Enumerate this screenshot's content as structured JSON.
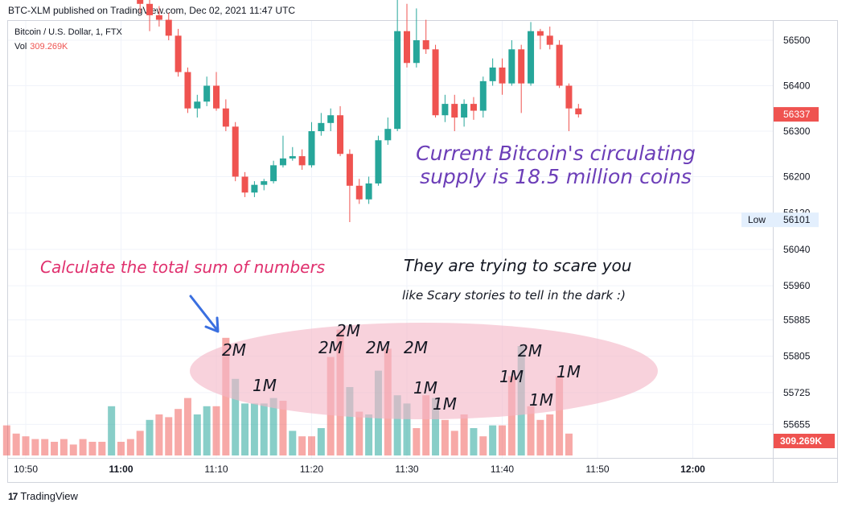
{
  "header": {
    "published": "BTC-XLM published on TradingView.com, Dec 02, 2021 11:47 UTC"
  },
  "legend": {
    "symbol": "Bitcoin / U.S. Dollar, 1, FTX",
    "volume_label": "Vol",
    "volume_value": "309.269K"
  },
  "annotations": {
    "supply_line1": "Current Bitcoin's circulating",
    "supply_line2": "supply is 18.5 million coins",
    "calculate": "Calculate the total sum of numbers",
    "scare": "They are trying to scare you",
    "stories": "like Scary stories to tell in the dark  :)"
  },
  "highlight_labels": [
    "2M",
    "1M",
    "2M",
    "2M",
    "2M",
    "2M",
    "1M",
    "1M",
    "1M",
    "2M",
    "1M",
    "1M"
  ],
  "branding": {
    "logo": "17",
    "name": "TradingView"
  },
  "colors": {
    "up": "#26a69a",
    "down": "#ef5350",
    "ellipse": "#f3b7c6",
    "arrow": "#3a6fe0",
    "supply_text": "#6c3eb8",
    "calc_text": "#e0306e"
  },
  "chart_data": {
    "type": "candlestick",
    "x_ticks": [
      "10:50",
      "11:00",
      "11:10",
      "11:20",
      "11:30",
      "11:40",
      "11:50",
      "12:00"
    ],
    "y_ticks": [
      56500,
      56400,
      56300,
      56200,
      56120,
      56040,
      55960,
      55885,
      55805,
      55725,
      55655
    ],
    "price_label": "56337",
    "low_label": "Low",
    "low_value": "56101",
    "volume_label": "309.269K",
    "candles": [
      {
        "t": "11:02",
        "o": 56600,
        "h": 56610,
        "l": 56560,
        "c": 56580
      },
      {
        "t": "11:03",
        "o": 56580,
        "h": 56600,
        "l": 56520,
        "c": 56555
      },
      {
        "t": "11:04",
        "o": 56555,
        "h": 56575,
        "l": 56530,
        "c": 56545
      },
      {
        "t": "11:05",
        "o": 56545,
        "h": 56560,
        "l": 56500,
        "c": 56510
      },
      {
        "t": "11:06",
        "o": 56510,
        "h": 56525,
        "l": 56420,
        "c": 56430
      },
      {
        "t": "11:07",
        "o": 56430,
        "h": 56440,
        "l": 56340,
        "c": 56350
      },
      {
        "t": "11:08",
        "o": 56350,
        "h": 56380,
        "l": 56330,
        "c": 56365
      },
      {
        "t": "11:09",
        "o": 56365,
        "h": 56420,
        "l": 56355,
        "c": 56400
      },
      {
        "t": "11:10",
        "o": 56400,
        "h": 56430,
        "l": 56345,
        "c": 56350
      },
      {
        "t": "11:11",
        "o": 56350,
        "h": 56370,
        "l": 56300,
        "c": 56310
      },
      {
        "t": "11:12",
        "o": 56310,
        "h": 56320,
        "l": 56190,
        "c": 56200
      },
      {
        "t": "11:13",
        "o": 56200,
        "h": 56210,
        "l": 56155,
        "c": 56165
      },
      {
        "t": "11:14",
        "o": 56165,
        "h": 56190,
        "l": 56155,
        "c": 56182
      },
      {
        "t": "11:15",
        "o": 56182,
        "h": 56195,
        "l": 56170,
        "c": 56190
      },
      {
        "t": "11:16",
        "o": 56190,
        "h": 56235,
        "l": 56185,
        "c": 56225
      },
      {
        "t": "11:17",
        "o": 56225,
        "h": 56290,
        "l": 56220,
        "c": 56240
      },
      {
        "t": "11:18",
        "o": 56240,
        "h": 56265,
        "l": 56235,
        "c": 56245
      },
      {
        "t": "11:19",
        "o": 56245,
        "h": 56260,
        "l": 56215,
        "c": 56225
      },
      {
        "t": "11:20",
        "o": 56225,
        "h": 56320,
        "l": 56220,
        "c": 56300
      },
      {
        "t": "11:21",
        "o": 56300,
        "h": 56340,
        "l": 56290,
        "c": 56318
      },
      {
        "t": "11:22",
        "o": 56318,
        "h": 56350,
        "l": 56300,
        "c": 56335
      },
      {
        "t": "11:23",
        "o": 56335,
        "h": 56355,
        "l": 56245,
        "c": 56250
      },
      {
        "t": "11:24",
        "o": 56250,
        "h": 56260,
        "l": 56100,
        "c": 56180
      },
      {
        "t": "11:25",
        "o": 56180,
        "h": 56195,
        "l": 56140,
        "c": 56150
      },
      {
        "t": "11:26",
        "o": 56150,
        "h": 56200,
        "l": 56140,
        "c": 56185
      },
      {
        "t": "11:27",
        "o": 56185,
        "h": 56290,
        "l": 56180,
        "c": 56280
      },
      {
        "t": "11:28",
        "o": 56280,
        "h": 56330,
        "l": 56270,
        "c": 56305
      },
      {
        "t": "11:29",
        "o": 56305,
        "h": 56600,
        "l": 56300,
        "c": 56520
      },
      {
        "t": "11:30",
        "o": 56520,
        "h": 56580,
        "l": 56440,
        "c": 56450
      },
      {
        "t": "11:31",
        "o": 56450,
        "h": 56570,
        "l": 56440,
        "c": 56500
      },
      {
        "t": "11:32",
        "o": 56500,
        "h": 56545,
        "l": 56470,
        "c": 56480
      },
      {
        "t": "11:33",
        "o": 56480,
        "h": 56490,
        "l": 56330,
        "c": 56335
      },
      {
        "t": "11:34",
        "o": 56335,
        "h": 56380,
        "l": 56320,
        "c": 56360
      },
      {
        "t": "11:35",
        "o": 56360,
        "h": 56380,
        "l": 56300,
        "c": 56330
      },
      {
        "t": "11:36",
        "o": 56330,
        "h": 56370,
        "l": 56310,
        "c": 56360
      },
      {
        "t": "11:37",
        "o": 56360,
        "h": 56375,
        "l": 56325,
        "c": 56345
      },
      {
        "t": "11:38",
        "o": 56345,
        "h": 56420,
        "l": 56330,
        "c": 56410
      },
      {
        "t": "11:39",
        "o": 56410,
        "h": 56460,
        "l": 56400,
        "c": 56440
      },
      {
        "t": "11:40",
        "o": 56440,
        "h": 56460,
        "l": 56380,
        "c": 56405
      },
      {
        "t": "11:41",
        "o": 56405,
        "h": 56500,
        "l": 56400,
        "c": 56480
      },
      {
        "t": "11:42",
        "o": 56480,
        "h": 56490,
        "l": 56340,
        "c": 56405
      },
      {
        "t": "11:43",
        "o": 56405,
        "h": 56540,
        "l": 56400,
        "c": 56520
      },
      {
        "t": "11:44",
        "o": 56520,
        "h": 56525,
        "l": 56480,
        "c": 56510
      },
      {
        "t": "11:45",
        "o": 56510,
        "h": 56530,
        "l": 56480,
        "c": 56490
      },
      {
        "t": "11:46",
        "o": 56490,
        "h": 56500,
        "l": 56395,
        "c": 56400
      },
      {
        "t": "11:47",
        "o": 56400,
        "h": 56405,
        "l": 56300,
        "c": 56350
      },
      {
        "t": "11:48",
        "o": 56350,
        "h": 56360,
        "l": 56330,
        "c": 56337
      }
    ],
    "volume_bars": [
      {
        "i": -12,
        "v": 0.22,
        "d": "down"
      },
      {
        "i": -11,
        "v": 0.16,
        "d": "down"
      },
      {
        "i": -10,
        "v": 0.14,
        "d": "down"
      },
      {
        "i": -9,
        "v": 0.12,
        "d": "down"
      },
      {
        "i": -8,
        "v": 0.12,
        "d": "down"
      },
      {
        "i": -7,
        "v": 0.1,
        "d": "down"
      },
      {
        "i": -6,
        "v": 0.12,
        "d": "down"
      },
      {
        "i": -5,
        "v": 0.08,
        "d": "down"
      },
      {
        "i": -4,
        "v": 0.12,
        "d": "down"
      },
      {
        "i": -3,
        "v": 0.1,
        "d": "down"
      },
      {
        "i": -2,
        "v": 0.1,
        "d": "down"
      },
      {
        "i": -1,
        "v": 0.36,
        "d": "up"
      },
      {
        "i": 0,
        "v": 0.1,
        "d": "down"
      },
      {
        "i": 1,
        "v": 0.12,
        "d": "down"
      },
      {
        "i": 2,
        "v": 0.18,
        "d": "down"
      },
      {
        "i": 3,
        "v": 0.26,
        "d": "up"
      },
      {
        "i": 4,
        "v": 0.3,
        "d": "down"
      },
      {
        "i": 5,
        "v": 0.28,
        "d": "down"
      },
      {
        "i": 6,
        "v": 0.34,
        "d": "down"
      },
      {
        "i": 7,
        "v": 0.42,
        "d": "down"
      },
      {
        "i": 8,
        "v": 0.3,
        "d": "up"
      },
      {
        "i": 9,
        "v": 0.36,
        "d": "up"
      },
      {
        "i": 10,
        "v": 0.36,
        "d": "down"
      },
      {
        "i": 11,
        "v": 0.86,
        "d": "down"
      },
      {
        "i": 12,
        "v": 0.56,
        "d": "up"
      },
      {
        "i": 13,
        "v": 0.38,
        "d": "up"
      },
      {
        "i": 14,
        "v": 0.38,
        "d": "up"
      },
      {
        "i": 15,
        "v": 0.38,
        "d": "up"
      },
      {
        "i": 16,
        "v": 0.42,
        "d": "up"
      },
      {
        "i": 17,
        "v": 0.4,
        "d": "down"
      },
      {
        "i": 18,
        "v": 0.18,
        "d": "up"
      },
      {
        "i": 19,
        "v": 0.14,
        "d": "down"
      },
      {
        "i": 20,
        "v": 0.14,
        "d": "down"
      },
      {
        "i": 21,
        "v": 0.2,
        "d": "up"
      },
      {
        "i": 22,
        "v": 0.72,
        "d": "down"
      },
      {
        "i": 23,
        "v": 0.92,
        "d": "down"
      },
      {
        "i": 24,
        "v": 0.5,
        "d": "up"
      },
      {
        "i": 25,
        "v": 0.32,
        "d": "down"
      },
      {
        "i": 26,
        "v": 0.3,
        "d": "up"
      },
      {
        "i": 27,
        "v": 0.62,
        "d": "up"
      },
      {
        "i": 28,
        "v": 0.78,
        "d": "down"
      },
      {
        "i": 29,
        "v": 0.44,
        "d": "up"
      },
      {
        "i": 30,
        "v": 0.38,
        "d": "up"
      },
      {
        "i": 31,
        "v": 0.2,
        "d": "down"
      },
      {
        "i": 32,
        "v": 0.44,
        "d": "down"
      },
      {
        "i": 33,
        "v": 0.42,
        "d": "up"
      },
      {
        "i": 34,
        "v": 0.26,
        "d": "down"
      },
      {
        "i": 35,
        "v": 0.18,
        "d": "down"
      },
      {
        "i": 36,
        "v": 0.3,
        "d": "down"
      },
      {
        "i": 37,
        "v": 0.2,
        "d": "up"
      },
      {
        "i": 38,
        "v": 0.14,
        "d": "down"
      },
      {
        "i": 39,
        "v": 0.22,
        "d": "up"
      },
      {
        "i": 40,
        "v": 0.22,
        "d": "down"
      },
      {
        "i": 41,
        "v": 0.58,
        "d": "down"
      },
      {
        "i": 42,
        "v": 0.8,
        "d": "up"
      },
      {
        "i": 43,
        "v": 0.36,
        "d": "down"
      },
      {
        "i": 44,
        "v": 0.26,
        "d": "down"
      },
      {
        "i": 45,
        "v": 0.3,
        "d": "down"
      },
      {
        "i": 46,
        "v": 0.58,
        "d": "down"
      },
      {
        "i": 47,
        "v": 0.16,
        "d": "down"
      }
    ]
  }
}
